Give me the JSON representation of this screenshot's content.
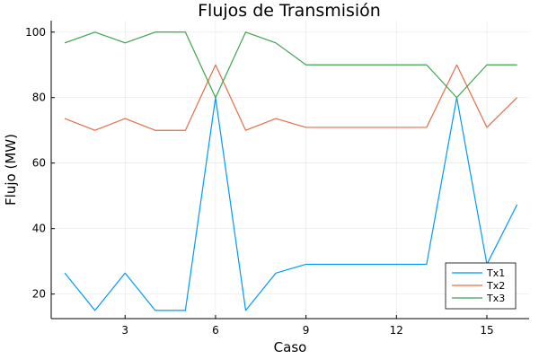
{
  "chart_data": {
    "type": "line",
    "title": "Flujos de Transmisión",
    "xlabel": "Caso",
    "ylabel": "Flujo (MW)",
    "xlim": [
      0.55,
      16.4
    ],
    "ylim": [
      12.5,
      103.5
    ],
    "xticks": [
      3,
      6,
      9,
      12,
      15
    ],
    "yticks": [
      20,
      40,
      60,
      80,
      100
    ],
    "grid": true,
    "legend_position": "bottom-right",
    "x": [
      1,
      2,
      3,
      4,
      5,
      6,
      7,
      8,
      9,
      10,
      11,
      12,
      13,
      14,
      15,
      16
    ],
    "series": [
      {
        "name": "Tx1",
        "color": "#009af9",
        "values": [
          26.4,
          15.0,
          26.4,
          15.0,
          15.0,
          80.0,
          15.0,
          26.4,
          29.1,
          29.1,
          29.1,
          29.1,
          29.1,
          80.0,
          29.1,
          47.3
        ]
      },
      {
        "name": "Tx2",
        "color": "#e26f46",
        "values": [
          73.6,
          70.0,
          73.6,
          70.0,
          70.0,
          90.0,
          70.0,
          73.6,
          70.9,
          70.9,
          70.9,
          70.9,
          70.9,
          90.0,
          70.9,
          80.0
        ]
      },
      {
        "name": "Tx3",
        "color": "#3da44d",
        "values": [
          96.7,
          100.0,
          96.7,
          100.0,
          100.0,
          80.0,
          100.0,
          96.7,
          90.0,
          90.0,
          90.0,
          90.0,
          90.0,
          80.0,
          90.0,
          90.0
        ]
      }
    ]
  }
}
